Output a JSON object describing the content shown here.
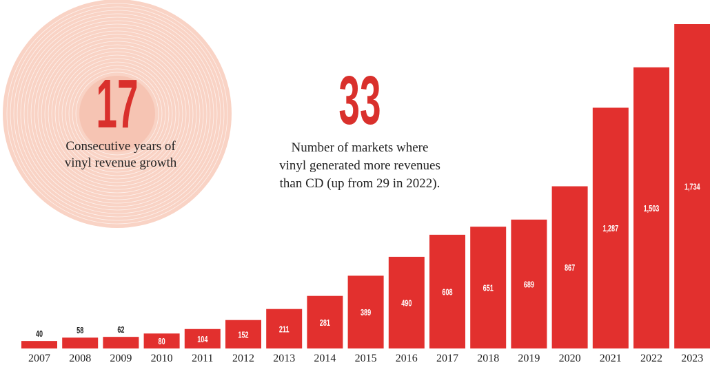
{
  "chart_data": {
    "type": "bar",
    "categories": [
      "2007",
      "2008",
      "2009",
      "2010",
      "2011",
      "2012",
      "2013",
      "2014",
      "2015",
      "2016",
      "2017",
      "2018",
      "2019",
      "2020",
      "2021",
      "2022",
      "2023"
    ],
    "values": [
      40,
      58,
      62,
      80,
      104,
      152,
      211,
      281,
      389,
      490,
      608,
      651,
      689,
      867,
      1287,
      1503,
      1734
    ],
    "value_labels": [
      "40",
      "58",
      "62",
      "80",
      "104",
      "152",
      "211",
      "281",
      "389",
      "490",
      "608",
      "651",
      "689",
      "867",
      "1,287",
      "1,503",
      "1,734"
    ],
    "color": "#e2302e"
  },
  "stats": [
    {
      "value": "17",
      "text": [
        "Consecutive years of",
        "vinyl revenue growth"
      ]
    },
    {
      "value": "33",
      "text": [
        "Number of markets where",
        "vinyl generated more revenues",
        "than CD (up from 29 in 2022)."
      ]
    }
  ]
}
